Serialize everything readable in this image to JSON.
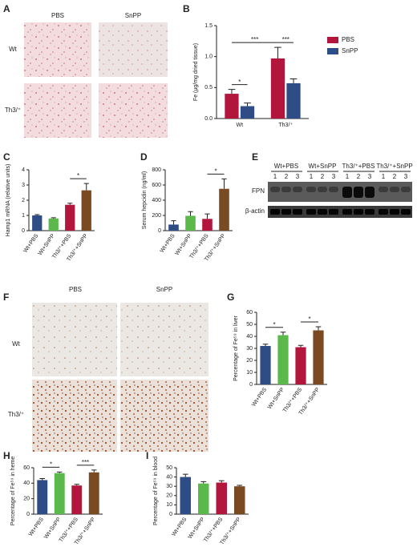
{
  "panel_a": {
    "label": "A",
    "columns": [
      "PBS",
      "SnPP"
    ],
    "rows": [
      "Wt",
      "Th3/⁺"
    ]
  },
  "panel_e": {
    "label": "E",
    "groups": [
      "Wt+PBS",
      "Wt+SnPP",
      "Th3/⁺+PBS",
      "Th3/⁺+SnPP"
    ],
    "lanes": [
      "1",
      "2",
      "3"
    ],
    "rows": [
      "FPN",
      "β-actin"
    ]
  },
  "panel_f": {
    "label": "F",
    "columns": [
      "PBS",
      "SnPP"
    ],
    "rows": [
      "Wt",
      "Th3/⁺"
    ]
  },
  "chart_data": [
    {
      "type": "bar",
      "label": "B",
      "ylabel": "Fe (μg/mg dried tissue)",
      "categories": [
        "Wt",
        "Th3/⁺"
      ],
      "series": [
        {
          "name": "PBS",
          "color": "#b3163c",
          "values": [
            0.4,
            0.97
          ],
          "errors": [
            0.07,
            0.18
          ]
        },
        {
          "name": "SnPP",
          "color": "#2e4c86",
          "values": [
            0.2,
            0.57
          ],
          "errors": [
            0.05,
            0.07
          ]
        }
      ],
      "ylim": [
        0,
        1.5
      ],
      "yticks": [
        {
          "value": 0,
          "label": "0.0"
        },
        {
          "value": 0.5,
          "label": "0.5"
        },
        {
          "value": 1,
          "label": "1.0"
        },
        {
          "value": 1.5,
          "label": "1.5"
        }
      ],
      "annotations": [
        {
          "text": "*",
          "between": [
            0,
            1
          ]
        },
        {
          "text": "***",
          "between": [
            0,
            2
          ]
        },
        {
          "text": "***",
          "between": [
            2,
            3
          ]
        }
      ]
    },
    {
      "type": "bar",
      "label": "C",
      "ylabel": "Hamp1 mRNA (relative units)",
      "categories": [
        "Wt+PBS",
        "Wt+SnPP",
        "Th3/⁺+PBS",
        "Th3/⁺+SnPP"
      ],
      "values": [
        1.0,
        0.8,
        1.7,
        2.65
      ],
      "errors": [
        0.05,
        0.05,
        0.1,
        0.45
      ],
      "colors": [
        "#2e4c86",
        "#5bb84b",
        "#b3163c",
        "#7a4a22"
      ],
      "ylim": [
        0,
        4
      ],
      "yticks": [
        0,
        1,
        2,
        3,
        4
      ],
      "annotations": [
        {
          "text": "*",
          "between": [
            2,
            3
          ]
        }
      ]
    },
    {
      "type": "bar",
      "label": "D",
      "ylabel": "Serum hepcidin (ng/ml)",
      "categories": [
        "Wt+PBS",
        "Wt+SnPP",
        "Th3/⁺+PBS",
        "Th3/⁺+SnPP"
      ],
      "values": [
        80,
        195,
        155,
        550
      ],
      "errors": [
        50,
        55,
        65,
        130
      ],
      "colors": [
        "#2e4c86",
        "#5bb84b",
        "#b3163c",
        "#7a4a22"
      ],
      "ylim": [
        0,
        800
      ],
      "yticks": [
        0,
        200,
        400,
        600,
        800
      ],
      "annotations": [
        {
          "text": "*",
          "between": [
            2,
            3
          ]
        }
      ]
    },
    {
      "type": "bar",
      "label": "G",
      "ylabel": "Percentage of Fe⁵⁹ in liver",
      "categories": [
        "Wt+PBS",
        "Wt+SnPP",
        "Th3/⁺+PBS",
        "Th3/⁺+SnPP"
      ],
      "values": [
        32,
        41,
        31,
        45
      ],
      "errors": [
        1.5,
        2.5,
        1.5,
        3
      ],
      "colors": [
        "#2e4c86",
        "#5bb84b",
        "#b3163c",
        "#7a4a22"
      ],
      "ylim": [
        0,
        60
      ],
      "yticks": [
        0,
        10,
        20,
        30,
        40,
        50,
        60
      ],
      "annotations": [
        {
          "text": "*",
          "between": [
            0,
            1
          ]
        },
        {
          "text": "*",
          "between": [
            2,
            3
          ]
        }
      ]
    },
    {
      "type": "bar",
      "label": "H",
      "ylabel": "Percentage of Fe⁵⁹ in heme",
      "categories": [
        "Wt+PBS",
        "Wt+SnPP",
        "Th3/⁺+PBS",
        "Th3/⁺+SnPP"
      ],
      "values": [
        44,
        53,
        37,
        54
      ],
      "errors": [
        2,
        1.5,
        1.5,
        3
      ],
      "colors": [
        "#2e4c86",
        "#5bb84b",
        "#b3163c",
        "#7a4a22"
      ],
      "ylim": [
        0,
        60
      ],
      "yticks": [
        0,
        20,
        40,
        60
      ],
      "annotations": [
        {
          "text": "*",
          "between": [
            0,
            1
          ]
        },
        {
          "text": "***",
          "between": [
            2,
            3
          ]
        }
      ]
    },
    {
      "type": "bar",
      "label": "I",
      "ylabel": "Percentage of Fe⁵⁹ in blood",
      "categories": [
        "Wt+PBS",
        "Wt+SnPP",
        "Th3/⁺+PBS",
        "Th3/⁺+SnPP"
      ],
      "values": [
        40,
        33,
        34,
        30
      ],
      "errors": [
        3,
        2,
        2,
        1
      ],
      "colors": [
        "#2e4c86",
        "#5bb84b",
        "#b3163c",
        "#7a4a22"
      ],
      "ylim": [
        0,
        50
      ],
      "yticks": [
        0,
        10,
        20,
        30,
        40,
        50
      ],
      "annotations": []
    }
  ]
}
